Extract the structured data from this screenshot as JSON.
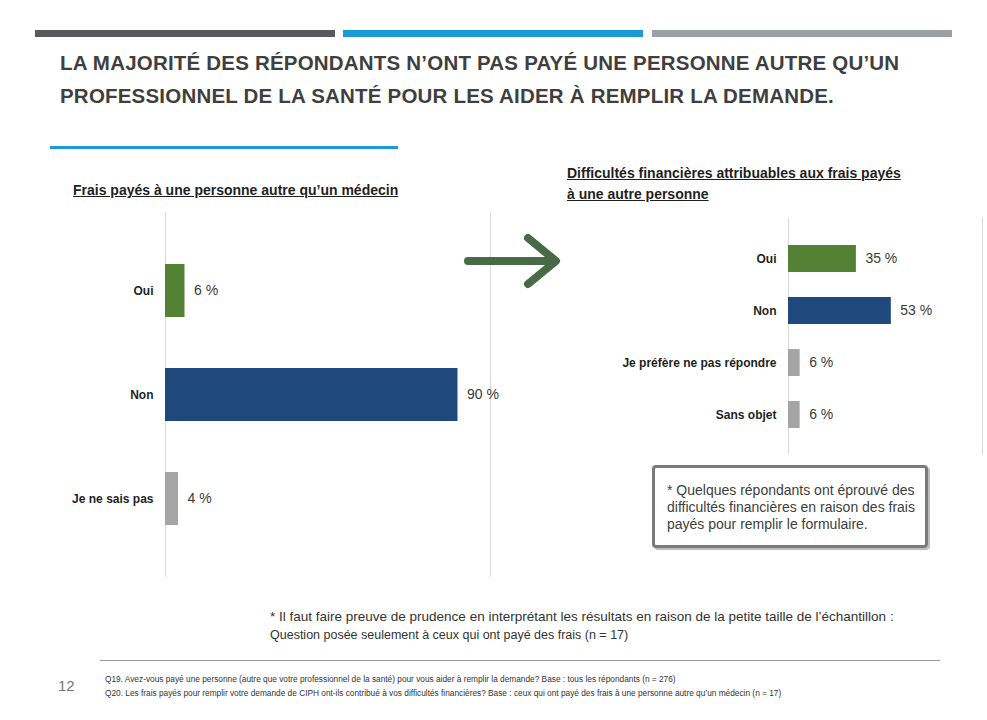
{
  "page": {
    "title": "LA MAJORITÉ DES RÉPONDANTS N’ONT PAS PAYÉ UNE PERSONNE AUTRE QU’UN  PROFESSIONNEL DE LA SANTÉ POUR LES AIDER À REMPLIR LA DEMANDE.",
    "note": "* Quelques répondants ont éprouvé des difficultés financières en raison des frais payés pour remplir le formulaire.",
    "caution": [
      "* Il faut faire preuve de prudence en interprétant les résultats en raison de la petite taille de l’échantillon :",
      "Question posée seulement à ceux qui ont payé des frais (n = 17)"
    ],
    "page_number": "12",
    "questions": [
      "Q19. Avez-vous payé une personne (autre que votre professionnel de la santé) pour vous aider à remplir la demande? Base : tous les répondants (n = 276)",
      "Q20. Les frais payés pour remplir votre demande de CIPH ont-ils contribué à vos difficultés financières? Base : ceux qui ont payé des frais à une personne autre qu’un médecin (n = 17)"
    ]
  },
  "chart_data": [
    {
      "type": "bar",
      "orientation": "horizontal",
      "title": "Frais payés à une personne autre qu’un médecin",
      "categories": [
        "Oui",
        "Non",
        "Je ne sais pas"
      ],
      "values": [
        6,
        90,
        4
      ],
      "value_labels": [
        "6 %",
        "90 %",
        "4 %"
      ],
      "colors": [
        "#548235",
        "#1f497d",
        "#a5a5a5"
      ],
      "xlim": [
        0,
        100
      ],
      "data_labels": true,
      "tick_labels": "y"
    },
    {
      "type": "bar",
      "orientation": "horizontal",
      "title": "Difficultés financières attribuables aux frais payés à une autre personne",
      "categories": [
        "Oui",
        "Non",
        "Je préfère ne pas répondre",
        "Sans objet"
      ],
      "values": [
        35,
        53,
        6,
        6
      ],
      "value_labels": [
        "35 %",
        "53 %",
        "6 %",
        "6 %"
      ],
      "colors": [
        "#548235",
        "#1f497d",
        "#a5a5a5",
        "#a5a5a5"
      ],
      "xlim": [
        0,
        100
      ],
      "data_labels": true,
      "tick_labels": "y"
    }
  ]
}
